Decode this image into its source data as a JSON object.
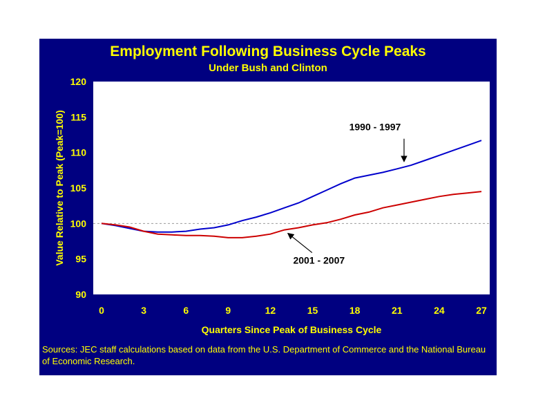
{
  "chart_data": {
    "type": "line",
    "title": "Employment Following Business Cycle Peaks",
    "subtitle": "Under Bush and Clinton",
    "xlabel": "Quarters Since Peak of Business Cycle",
    "ylabel": "Value Relative to Peak (Peak=100)",
    "xlim": [
      0,
      27
    ],
    "ylim": [
      90,
      120
    ],
    "x_ticks": [
      0,
      3,
      6,
      9,
      12,
      15,
      18,
      21,
      24,
      27
    ],
    "y_ticks": [
      90,
      95,
      100,
      105,
      110,
      115,
      120
    ],
    "reference_line": 100,
    "x": [
      0,
      1,
      2,
      3,
      4,
      5,
      6,
      7,
      8,
      9,
      10,
      11,
      12,
      13,
      14,
      15,
      16,
      17,
      18,
      19,
      20,
      21,
      22,
      23,
      24,
      25,
      26,
      27
    ],
    "series": [
      {
        "name": "1990 - 1997",
        "color": "#0000cc",
        "values": [
          100,
          99.7,
          99.3,
          98.9,
          98.8,
          98.8,
          98.9,
          99.2,
          99.4,
          99.8,
          100.4,
          100.9,
          101.5,
          102.2,
          102.9,
          103.8,
          104.7,
          105.6,
          106.4,
          106.8,
          107.2,
          107.7,
          108.2,
          108.9,
          109.6,
          110.3,
          111.0,
          111.7
        ]
      },
      {
        "name": "2001 - 2007",
        "color": "#cc0000",
        "values": [
          100,
          99.8,
          99.5,
          98.9,
          98.5,
          98.4,
          98.3,
          98.3,
          98.2,
          98.0,
          98.0,
          98.2,
          98.5,
          99.1,
          99.4,
          99.8,
          100.1,
          100.6,
          101.2,
          101.6,
          102.2,
          102.6,
          103.0,
          103.4,
          103.8,
          104.1,
          104.3,
          104.5
        ]
      }
    ],
    "annotations": [
      {
        "text": "1990 - 1997",
        "x_at": 21.5,
        "series": 0
      },
      {
        "text": "2001 - 2007",
        "x_at": 13,
        "series": 1
      }
    ],
    "colors": {
      "panel": "#000080",
      "plot": "#ffffff",
      "text": "#ffff00",
      "grid_ref": "#999999"
    }
  },
  "sources": "Sources: JEC staff calculations based on data from the U.S. Department of Commerce and the National Bureau of Economic Research."
}
